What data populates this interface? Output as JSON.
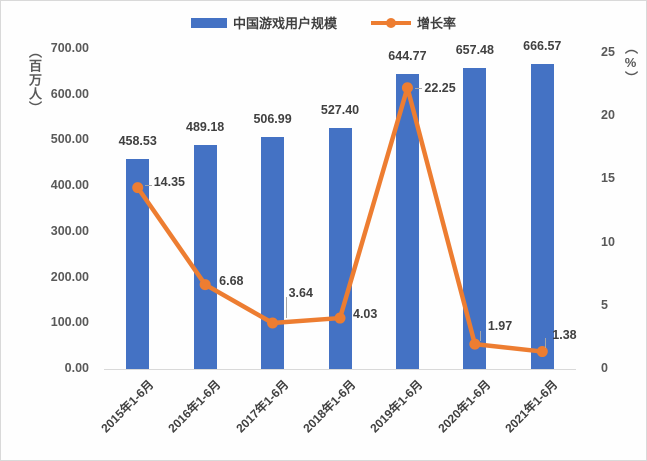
{
  "colors": {
    "bar": "#4472C4",
    "line": "#ED7D31",
    "label_text": "#404040",
    "tick_text": "#595959",
    "axis_line": "#d9d9d9"
  },
  "chart_data": {
    "type": "bar",
    "combo": true,
    "title": "",
    "categories": [
      "2015年1-6月",
      "2016年1-6月",
      "2017年1-6月",
      "2018年1-6月",
      "2019年1-6月",
      "2020年1-6月",
      "2021年1-6月"
    ],
    "series": [
      {
        "name": "中国游戏用户规模",
        "type": "bar",
        "axis": "left",
        "values": [
          458.53,
          489.18,
          506.99,
          527.4,
          644.77,
          657.48,
          666.57
        ],
        "labels": [
          "458.53",
          "489.18",
          "506.99",
          "527.40",
          "644.77",
          "657.48",
          "666.57"
        ]
      },
      {
        "name": "增长率",
        "type": "line",
        "axis": "right",
        "values": [
          14.35,
          6.68,
          3.64,
          4.03,
          22.25,
          1.97,
          1.38
        ],
        "labels": [
          "14.35",
          "6.68",
          "3.64",
          "4.03",
          "22.25",
          "1.97",
          "1.38"
        ]
      }
    ],
    "left_axis": {
      "title": "（百万人）",
      "min": 0,
      "max": 700,
      "step": 100,
      "tick_labels": [
        "0.00",
        "100.00",
        "200.00",
        "300.00",
        "400.00",
        "500.00",
        "600.00",
        "700.00"
      ]
    },
    "right_axis": {
      "title": "（%）",
      "min": 0,
      "max": 25,
      "step": 5,
      "tick_labels": [
        "0",
        "5",
        "10",
        "15",
        "20",
        "25"
      ]
    },
    "legend_position": "top",
    "grid": false
  }
}
